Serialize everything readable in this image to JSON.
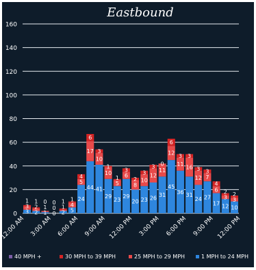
{
  "chart_data": {
    "type": "bar",
    "stacked": true,
    "title": "Eastbound",
    "xlabel": "",
    "ylabel": "",
    "ylim": [
      0,
      160
    ],
    "yticks": [
      0,
      20,
      40,
      60,
      80,
      100,
      120,
      140,
      160
    ],
    "grid": true,
    "legend_position": "bottom",
    "categories": [
      "12:00 AM",
      "1:00 AM",
      "2:00 AM",
      "3:00 AM",
      "4:00 AM",
      "5:00 AM",
      "6:00 AM",
      "7:00 AM",
      "8:00 AM",
      "9:00 AM",
      "10:00 AM",
      "11:00 AM",
      "12:00 PM",
      "1:00 PM",
      "2:00 PM",
      "3:00 PM",
      "4:00 PM",
      "5:00 PM",
      "6:00 PM",
      "7:00 PM",
      "8:00 PM",
      "9:00 PM",
      "10:00 PM",
      "11:00 PM"
    ],
    "tick_labels": [
      "12:00 AM",
      "",
      "",
      "3:00 AM",
      "",
      "",
      "6:00 AM",
      "",
      "",
      "9:00 AM",
      "",
      "",
      "12:00 PM",
      "",
      "",
      "3:00 PM",
      "",
      "",
      "6:00 PM",
      "",
      "",
      "9:00 PM",
      "",
      "",
      "12:00 PM"
    ],
    "series": [
      {
        "name": "1 MPH to 24 MPH",
        "color": "#2e86de",
        "values": [
          3,
          2,
          1,
          0,
          2,
          5,
          24,
          44,
          41,
          29,
          23,
          29,
          20,
          23,
          26,
          31,
          45,
          36,
          31,
          24,
          27,
          17,
          12,
          10
        ]
      },
      {
        "name": "25 MPH to 29 MPH",
        "color": "#e84a4a",
        "values": [
          3,
          2,
          1,
          0,
          1,
          4,
          5,
          17,
          10,
          10,
          5,
          6,
          8,
          10,
          12,
          11,
          12,
          11,
          16,
          12,
          7,
          6,
          3,
          3
        ]
      },
      {
        "name": "30 MPH to 39 MPH",
        "color": "#d42424",
        "values": [
          1,
          1,
          0,
          0,
          1,
          1,
          4,
          6,
          3,
          1,
          1,
          3,
          2,
          3,
          3,
          0,
          6,
          3,
          3,
          3,
          3,
          4,
          2,
          2
        ]
      },
      {
        "name": "40 MPH +",
        "color": "#7b5ea7",
        "values": [
          0,
          0,
          0,
          0,
          0,
          0,
          0,
          0,
          0,
          0,
          0,
          0,
          0,
          0,
          0,
          0,
          0,
          0,
          0,
          0,
          0,
          0,
          0,
          0
        ]
      }
    ]
  },
  "colors": {
    "background": "#0e1c2a",
    "gridline": "#e8edf2",
    "text": "#ffffff"
  }
}
